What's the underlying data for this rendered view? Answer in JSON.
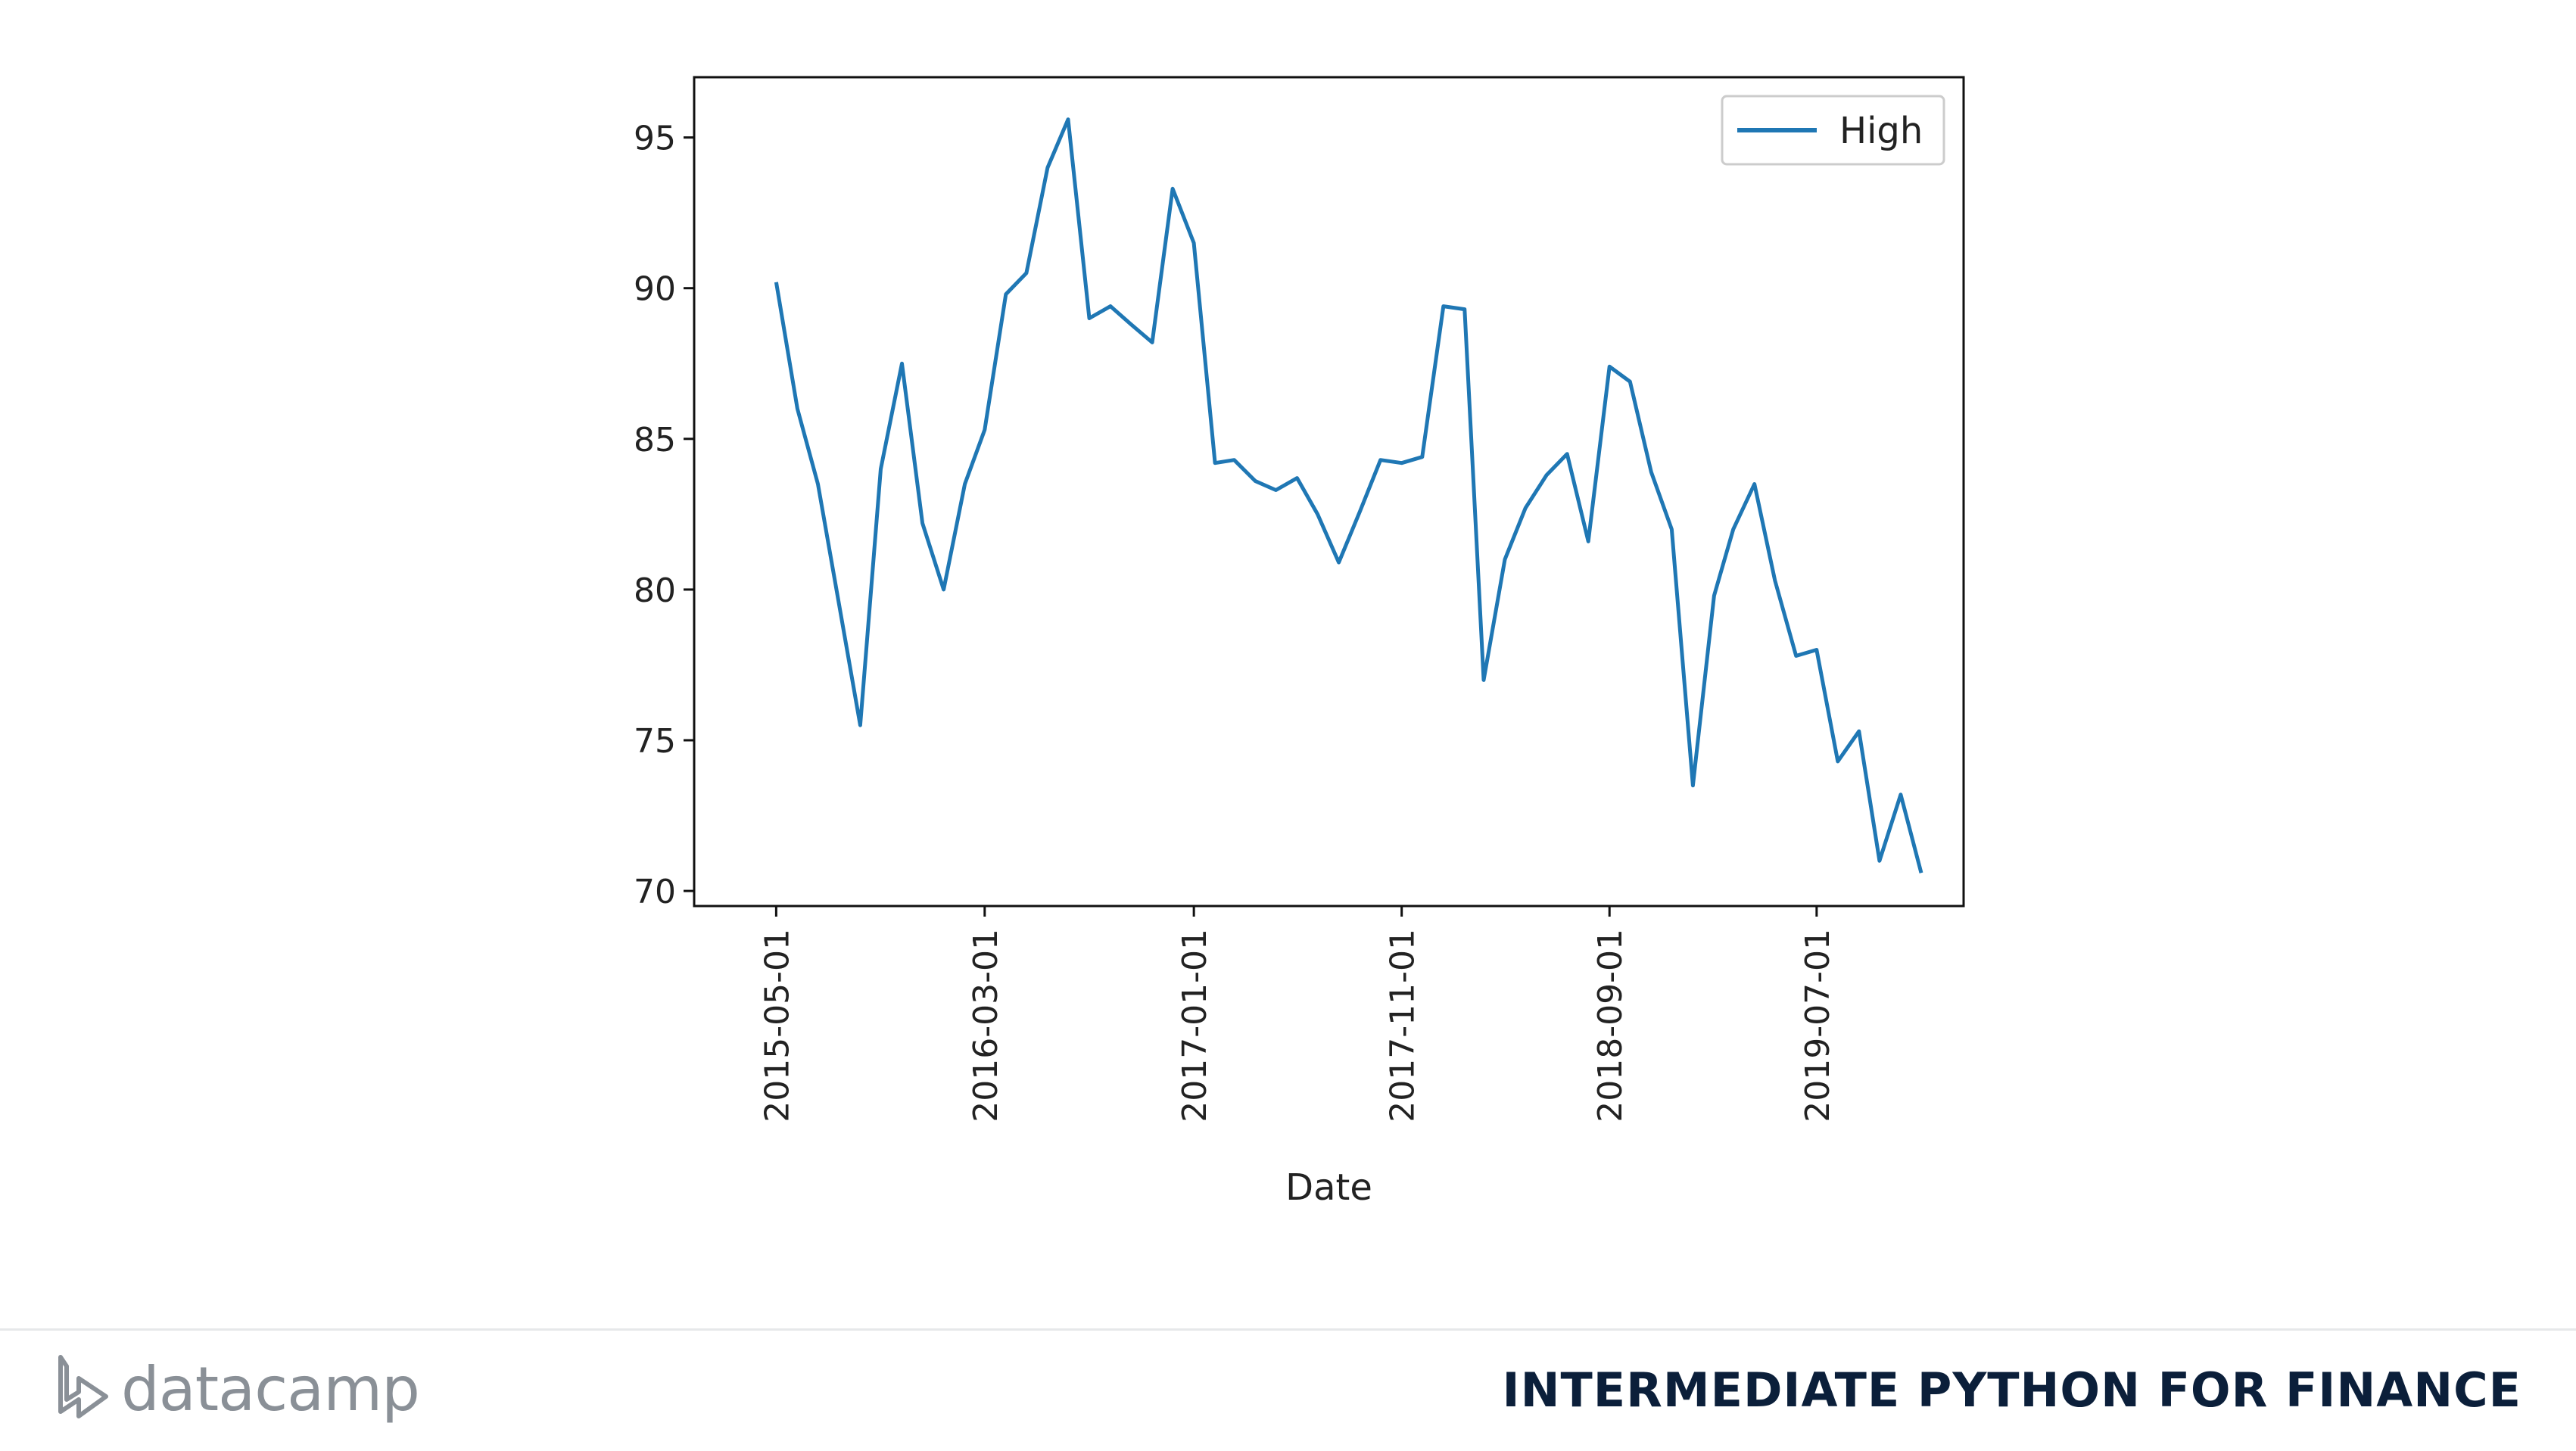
{
  "chart_data": {
    "type": "line",
    "xlabel": "Date",
    "ylabel": "",
    "ylim": [
      69.5,
      97
    ],
    "xlim": [
      "2015-01-01",
      "2020-02-01"
    ],
    "yticks": [
      70,
      75,
      80,
      85,
      90,
      95
    ],
    "xticks": [
      "2015-05-01",
      "2016-03-01",
      "2017-01-01",
      "2017-11-01",
      "2018-09-01",
      "2019-07-01"
    ],
    "grid": false,
    "legend": {
      "placement": "top-right"
    },
    "series": [
      {
        "name": "High",
        "color": "#1f77b4",
        "x": [
          "2015-05-01",
          "2015-06-01",
          "2015-07-01",
          "2015-08-01",
          "2015-09-01",
          "2015-10-01",
          "2015-11-01",
          "2015-12-01",
          "2016-01-01",
          "2016-02-01",
          "2016-03-01",
          "2016-04-01",
          "2016-05-01",
          "2016-06-01",
          "2016-07-01",
          "2016-08-01",
          "2016-09-01",
          "2016-10-01",
          "2016-11-01",
          "2016-12-01",
          "2017-01-01",
          "2017-02-01",
          "2017-03-01",
          "2017-04-01",
          "2017-05-01",
          "2017-06-01",
          "2017-07-01",
          "2017-08-01",
          "2017-09-01",
          "2017-10-01",
          "2017-11-01",
          "2017-12-01",
          "2018-01-01",
          "2018-02-01",
          "2018-03-01",
          "2018-04-01",
          "2018-05-01",
          "2018-06-01",
          "2018-07-01",
          "2018-08-01",
          "2018-09-01",
          "2018-10-01",
          "2018-11-01",
          "2018-12-01",
          "2019-01-01",
          "2019-02-01",
          "2019-03-01",
          "2019-04-01",
          "2019-05-01",
          "2019-06-01",
          "2019-07-01",
          "2019-08-01",
          "2019-09-01",
          "2019-10-01",
          "2019-11-01",
          "2019-12-01"
        ],
        "values": [
          90.2,
          86.0,
          83.5,
          79.5,
          75.5,
          84.0,
          87.5,
          82.2,
          80.0,
          83.5,
          85.3,
          89.8,
          90.5,
          94.0,
          95.6,
          89.0,
          89.4,
          88.8,
          88.2,
          93.3,
          91.5,
          84.2,
          84.3,
          83.6,
          83.3,
          83.7,
          82.5,
          80.9,
          82.6,
          84.3,
          84.2,
          84.4,
          89.4,
          89.3,
          77.0,
          81.0,
          82.7,
          83.8,
          84.5,
          81.6,
          87.4,
          86.9,
          83.9,
          82.0,
          73.5,
          79.8,
          82.0,
          83.5,
          80.3,
          77.8,
          78.0,
          74.3,
          75.3,
          71.0,
          73.2,
          70.6
        ]
      }
    ]
  },
  "footer": {
    "brand": "datacamp",
    "course_title": "INTERMEDIATE PYTHON FOR FINANCE"
  }
}
